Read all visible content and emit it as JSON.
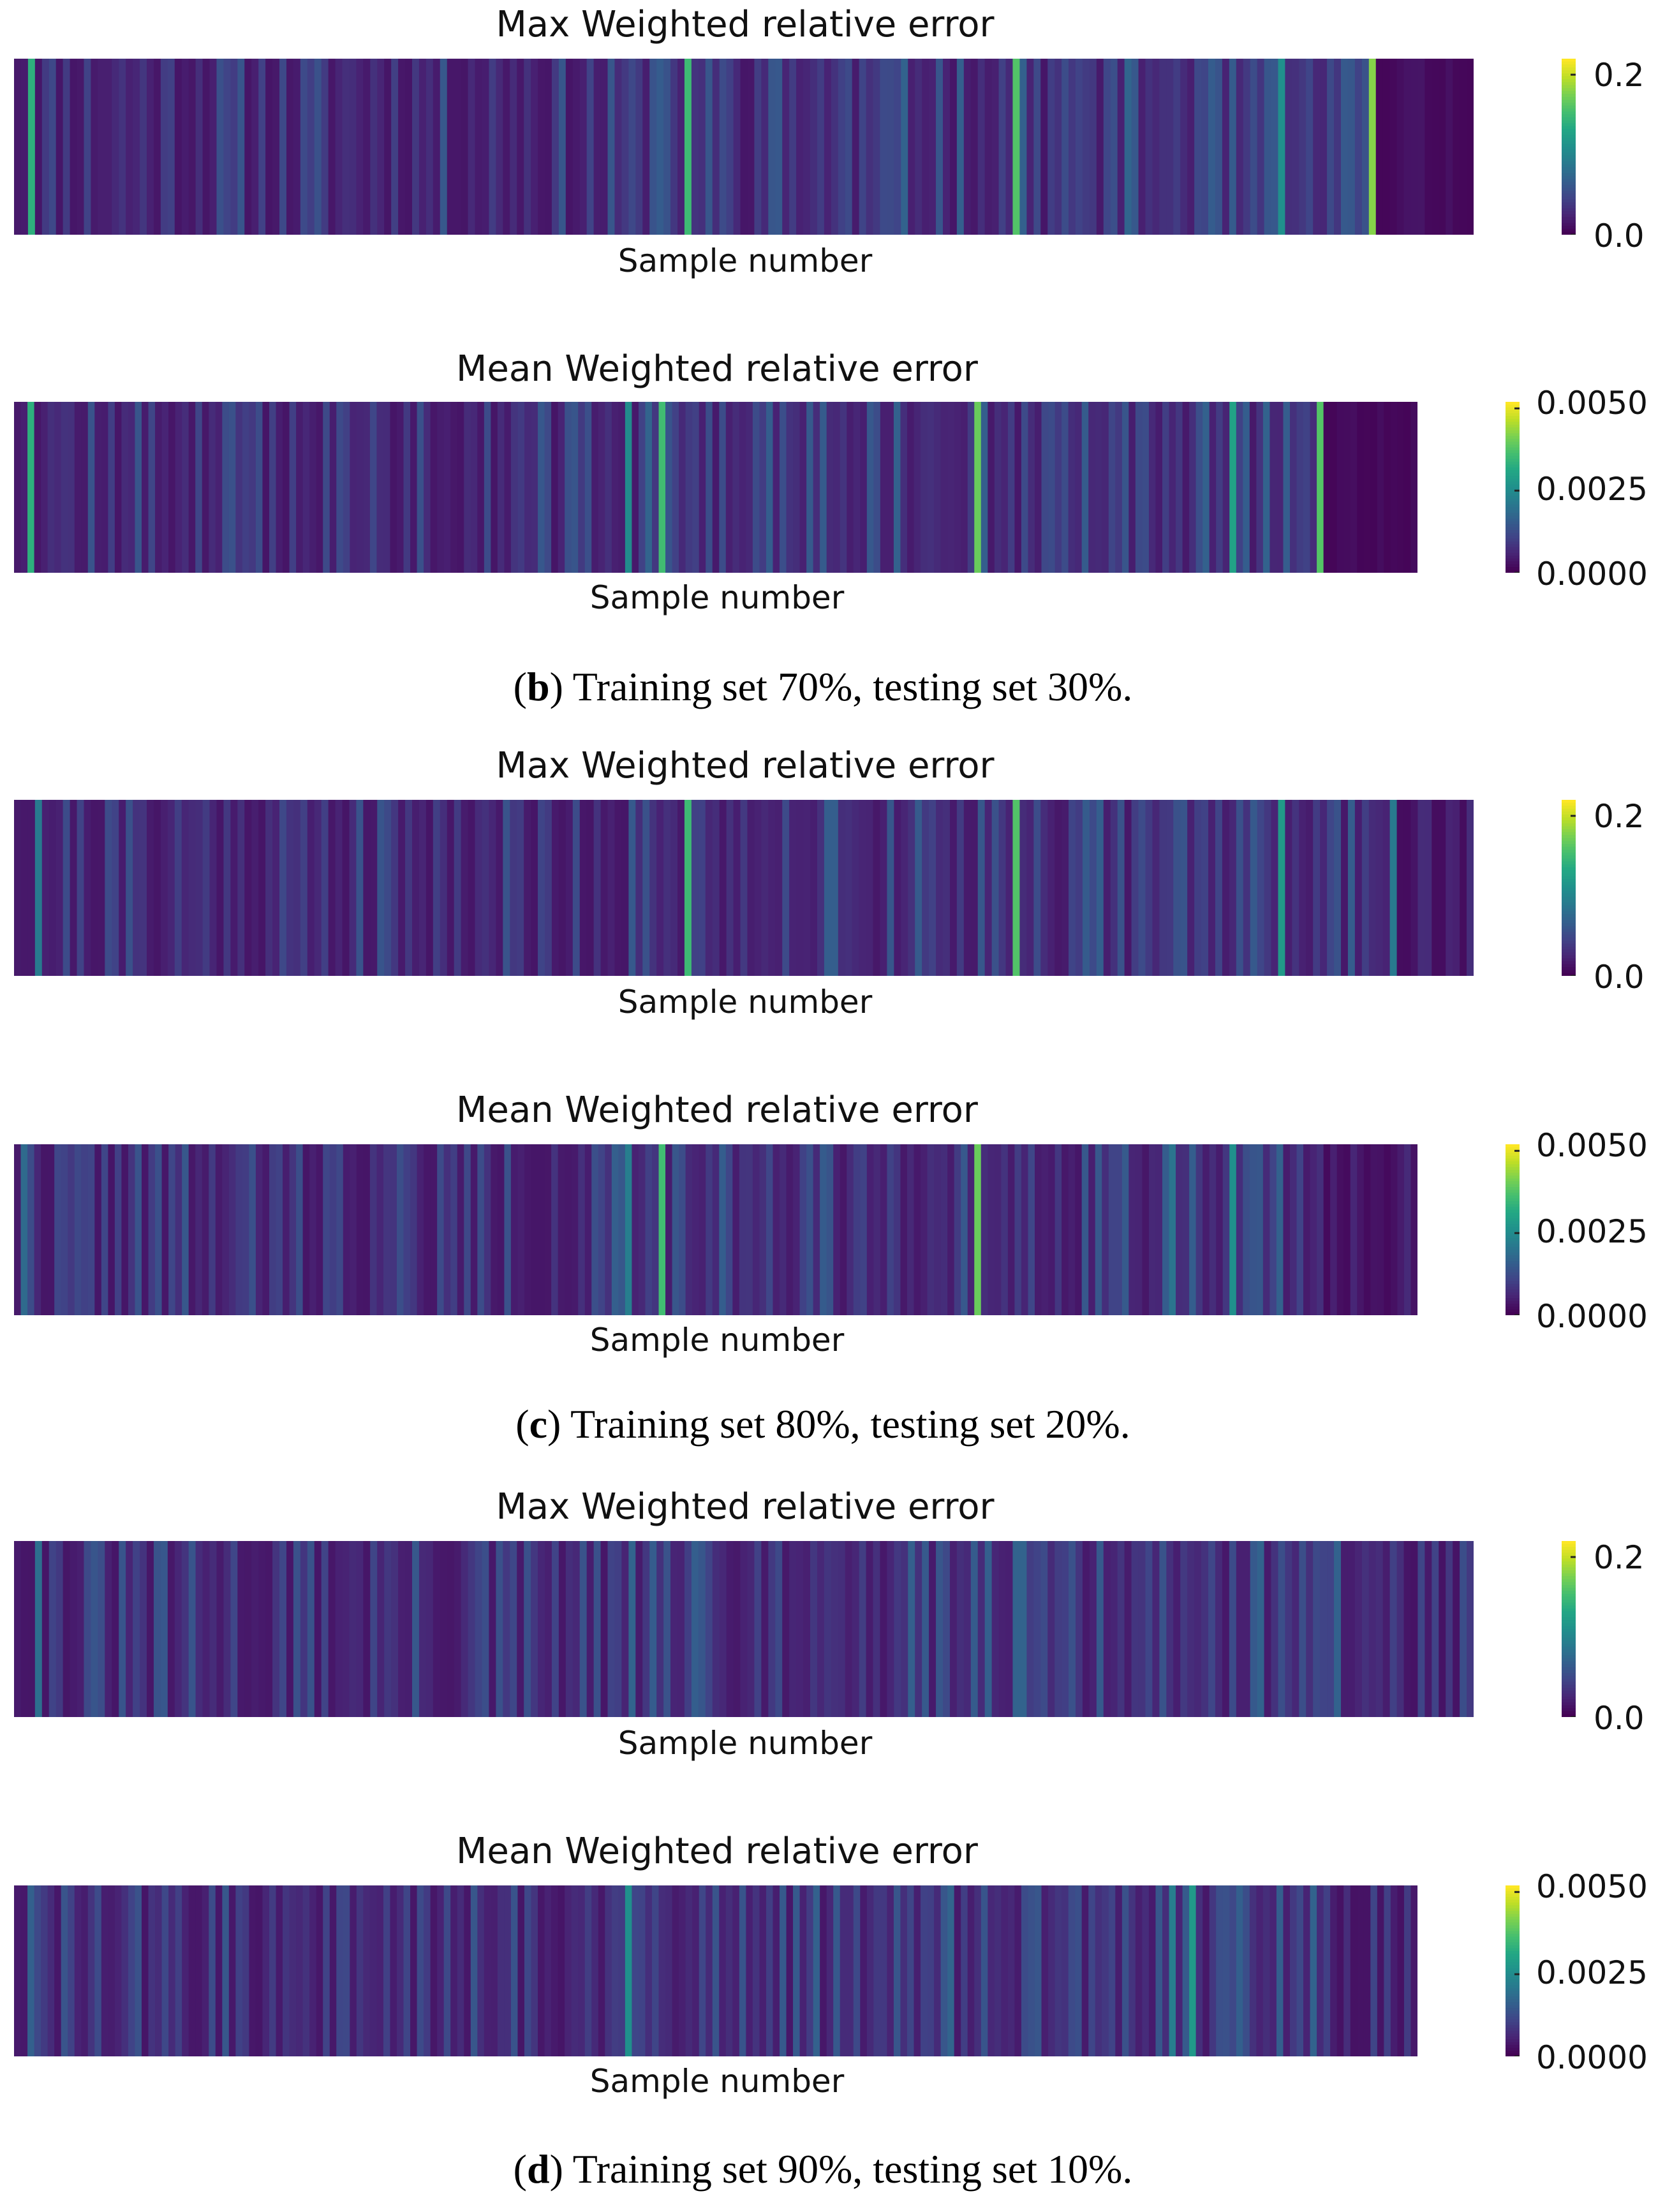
{
  "panels": [
    {
      "caption": {
        "letter": "b",
        "text": ") Training set 70%, testing set 30%."
      },
      "chart_data": [
        {
          "type": "heatmap",
          "title": "Max Weighted relative error",
          "xlabel": "Sample number",
          "ylabel": "",
          "colormap": "viridis",
          "vmin": 0.0,
          "vmax": 0.22,
          "colorbar_ticks": [
            "0.0",
            "0.2"
          ],
          "colorbar_tick_values": [
            0.0,
            0.2
          ],
          "n_samples": 209,
          "seed": 11,
          "base_decay": 0.25,
          "spikes": [
            {
              "sample": 2,
              "value": 0.14
            },
            {
              "sample": 96,
              "value": 0.15
            },
            {
              "sample": 143,
              "value": 0.16
            },
            {
              "sample": 181,
              "value": 0.11
            },
            {
              "sample": 194,
              "value": 0.18
            }
          ]
        },
        {
          "type": "heatmap",
          "title": "Mean Weighted relative error",
          "xlabel": "Sample number",
          "ylabel": "",
          "colormap": "viridis",
          "vmin": 0.0,
          "vmax": 0.0052,
          "colorbar_ticks": [
            "0.0000",
            "0.0025",
            "0.0050"
          ],
          "colorbar_tick_values": [
            0.0,
            0.0025,
            0.005
          ],
          "n_samples": 209,
          "seed": 12,
          "base_decay": 0.2,
          "spikes": [
            {
              "sample": 2,
              "value": 0.0033
            },
            {
              "sample": 91,
              "value": 0.0025
            },
            {
              "sample": 96,
              "value": 0.0036
            },
            {
              "sample": 143,
              "value": 0.004
            },
            {
              "sample": 181,
              "value": 0.003
            },
            {
              "sample": 194,
              "value": 0.0038
            }
          ]
        }
      ]
    },
    {
      "caption": {
        "letter": "c",
        "text": ") Training set 80%, testing set 20%."
      },
      "chart_data": [
        {
          "type": "heatmap",
          "title": "Max Weighted relative error",
          "xlabel": "Sample number",
          "ylabel": "",
          "colormap": "viridis",
          "vmin": 0.0,
          "vmax": 0.22,
          "colorbar_ticks": [
            "0.0",
            "0.2"
          ],
          "colorbar_tick_values": [
            0.0,
            0.2
          ],
          "n_samples": 209,
          "seed": 21,
          "base_decay": 0.55,
          "spikes": [
            {
              "sample": 3,
              "value": 0.09
            },
            {
              "sample": 96,
              "value": 0.15
            },
            {
              "sample": 143,
              "value": 0.16
            },
            {
              "sample": 181,
              "value": 0.12
            },
            {
              "sample": 197,
              "value": 0.09
            }
          ]
        },
        {
          "type": "heatmap",
          "title": "Mean Weighted relative error",
          "xlabel": "Sample number",
          "ylabel": "",
          "colormap": "viridis",
          "vmin": 0.0,
          "vmax": 0.0052,
          "colorbar_ticks": [
            "0.0000",
            "0.0025",
            "0.0050"
          ],
          "colorbar_tick_values": [
            0.0,
            0.0025,
            0.005
          ],
          "n_samples": 209,
          "seed": 22,
          "base_decay": 0.45,
          "spikes": [
            {
              "sample": 1,
              "value": 0.0018
            },
            {
              "sample": 91,
              "value": 0.0022
            },
            {
              "sample": 96,
              "value": 0.0036
            },
            {
              "sample": 143,
              "value": 0.004
            },
            {
              "sample": 181,
              "value": 0.0026
            },
            {
              "sample": 172,
              "value": 0.002
            }
          ]
        }
      ]
    },
    {
      "caption": {
        "letter": "d",
        "text": ") Training set 90%, testing set 10%."
      },
      "chart_data": [
        {
          "type": "heatmap",
          "title": "Max Weighted relative error",
          "xlabel": "Sample number",
          "ylabel": "",
          "colormap": "viridis",
          "vmin": 0.0,
          "vmax": 0.22,
          "colorbar_ticks": [
            "0.0",
            "0.2"
          ],
          "colorbar_tick_values": [
            0.0,
            0.2
          ],
          "n_samples": 209,
          "seed": 31,
          "base_decay": 0.9,
          "spikes": [
            {
              "sample": 3,
              "value": 0.08
            },
            {
              "sample": 88,
              "value": 0.07
            },
            {
              "sample": 143,
              "value": 0.07
            },
            {
              "sample": 178,
              "value": 0.07
            }
          ]
        },
        {
          "type": "heatmap",
          "title": "Mean Weighted relative error",
          "xlabel": "Sample number",
          "ylabel": "",
          "colormap": "viridis",
          "vmin": 0.0,
          "vmax": 0.0052,
          "colorbar_ticks": [
            "0.0000",
            "0.0025",
            "0.0050"
          ],
          "colorbar_tick_values": [
            0.0,
            0.0025,
            0.005
          ],
          "n_samples": 209,
          "seed": 32,
          "base_decay": 0.8,
          "spikes": [
            {
              "sample": 2,
              "value": 0.0016
            },
            {
              "sample": 91,
              "value": 0.0026
            },
            {
              "sample": 172,
              "value": 0.0022
            },
            {
              "sample": 175,
              "value": 0.0028
            }
          ]
        }
      ]
    }
  ]
}
